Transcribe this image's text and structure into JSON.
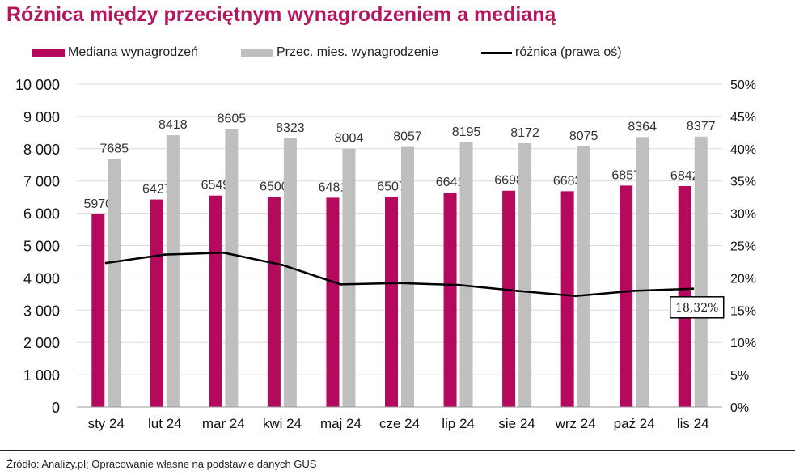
{
  "chart_data": {
    "type": "bar",
    "title": "Różnica między przeciętnym wynagrodzeniem a medianą",
    "categories": [
      "sty 24",
      "lut 24",
      "mar 24",
      "kwi 24",
      "maj 24",
      "cze 24",
      "lip 24",
      "sie 24",
      "wrz 24",
      "paź 24",
      "lis 24"
    ],
    "series": [
      {
        "name": "Mediana wynagrodzeń",
        "type": "bar",
        "axis": "left",
        "color": "#b5095e",
        "values": [
          5970,
          6427,
          6549,
          6500,
          6481,
          6507,
          6641,
          6698,
          6683,
          6857,
          6842
        ]
      },
      {
        "name": "Przec. mies. wynagrodzenie",
        "type": "bar",
        "axis": "left",
        "color": "#bfbfbf",
        "values": [
          7685,
          8418,
          8605,
          8323,
          8004,
          8057,
          8195,
          8172,
          8075,
          8364,
          8377
        ]
      },
      {
        "name": "różnica (prawa oś)",
        "type": "line",
        "axis": "right",
        "color": "#000000",
        "values": [
          22.3,
          23.6,
          23.9,
          22.0,
          19.0,
          19.2,
          18.9,
          18.0,
          17.2,
          18.0,
          18.32
        ]
      }
    ],
    "y_left": {
      "min": 0,
      "max": 10000,
      "step": 1000,
      "tick_labels": [
        "0",
        "1 000",
        "2 000",
        "3 000",
        "4 000",
        "5 000",
        "6 000",
        "7 000",
        "8 000",
        "9 000",
        "10 000"
      ]
    },
    "y_right": {
      "min": 0,
      "max": 50,
      "step": 5,
      "tick_labels": [
        "0%",
        "5%",
        "10%",
        "15%",
        "20%",
        "25%",
        "30%",
        "35%",
        "40%",
        "45%",
        "50%"
      ]
    },
    "annotation": {
      "text": "18,32%",
      "series": 2,
      "index": 10
    },
    "grid": true,
    "legend_position": "top"
  },
  "source": "Źródło: Analizy.pl; Opracowanie własne na podstawie danych GUS"
}
